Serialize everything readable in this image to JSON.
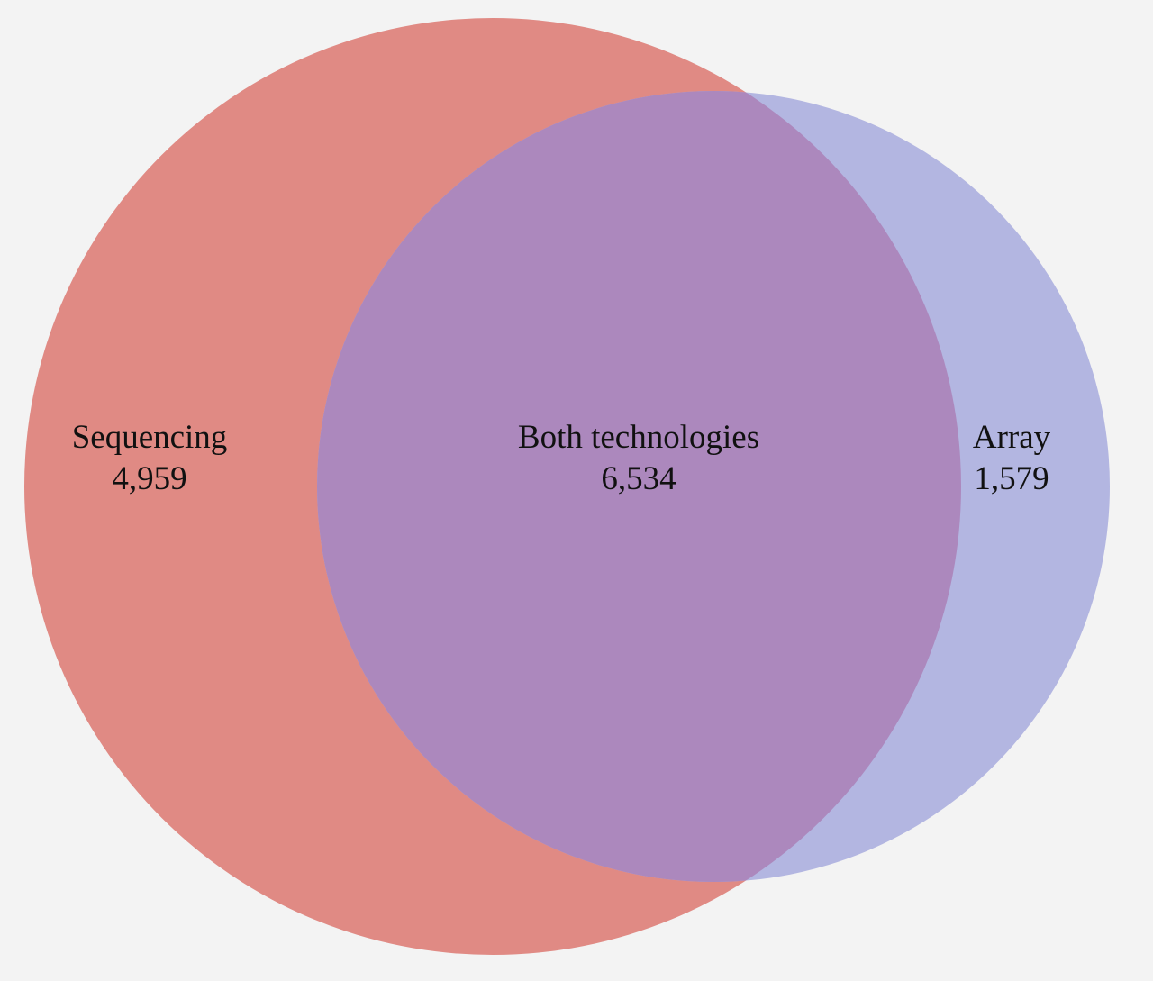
{
  "diagram": {
    "type": "venn",
    "background_color": "#f3f3f3",
    "sets": [
      {
        "key": "sequencing",
        "name": "Sequencing",
        "count": "4,959",
        "color": "#e08a84"
      },
      {
        "key": "array",
        "name": "Array",
        "count": "1,579",
        "color": "#b3b6e1"
      }
    ],
    "intersection": {
      "name": "Both technologies",
      "count": "6,534",
      "color": "#ac88bd"
    }
  }
}
